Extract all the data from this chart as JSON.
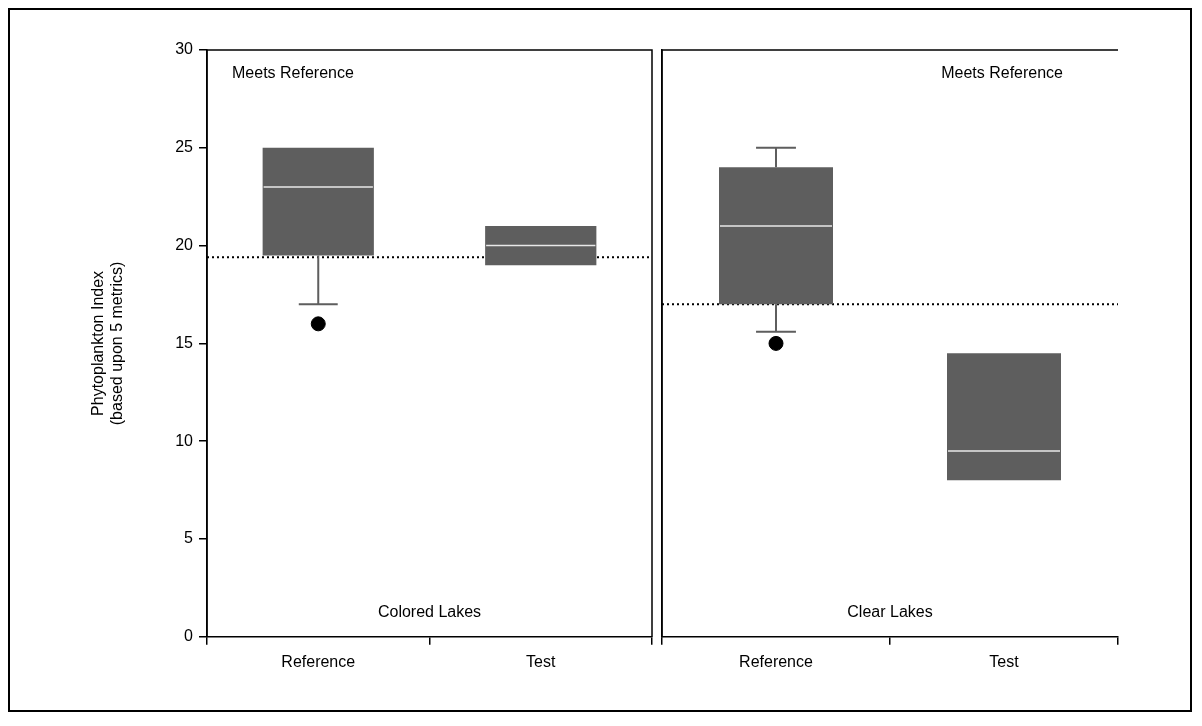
{
  "chart_data": [
    {
      "type": "box",
      "categories": [
        "Reference",
        "Test"
      ],
      "ylabel": "Phytoplankton Index\n(based upon 5 metrics)",
      "ylim": [
        0,
        30
      ],
      "yticks": [
        0,
        5,
        10,
        15,
        20,
        25,
        30
      ],
      "grid": false,
      "series": [
        {
          "color": "#5e5e5e",
          "boxes": [
            {
              "low": 17,
              "q1": 19.5,
              "median": 23,
              "q3": 25,
              "high": 25,
              "outliers": [
                16
              ]
            },
            {
              "low": 19,
              "q1": 19,
              "median": 20,
              "q3": 21,
              "high": 21
            }
          ]
        }
      ],
      "ref_lines": [
        {
          "axis": "y",
          "value": 19.4,
          "line_style": "dotted"
        }
      ],
      "annotations": [
        "Meets Reference",
        "Colored Lakes"
      ]
    },
    {
      "type": "box",
      "categories": [
        "Reference",
        "Test"
      ],
      "ylim": [
        0,
        30
      ],
      "yticks": [
        0,
        5,
        10,
        15,
        20,
        25,
        30
      ],
      "grid": false,
      "tick_labels": "x",
      "series": [
        {
          "color": "#5e5e5e",
          "boxes": [
            {
              "low": 15.6,
              "q1": 17,
              "median": 21,
              "q3": 24,
              "high": 25,
              "outliers": [
                15
              ]
            },
            {
              "low": 8,
              "q1": 8,
              "median": 9.5,
              "q3": 14.5,
              "high": 14.5
            }
          ]
        }
      ],
      "ref_lines": [
        {
          "axis": "y",
          "value": 17,
          "line_style": "dotted"
        }
      ],
      "annotations": [
        "Meets Reference",
        "Clear Lakes"
      ]
    }
  ]
}
